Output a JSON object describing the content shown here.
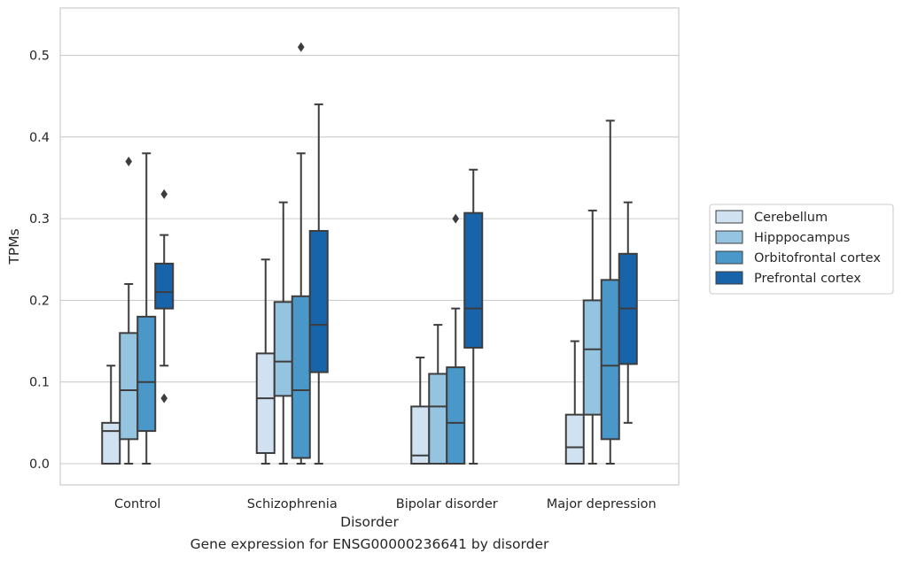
{
  "chart_data": {
    "type": "box",
    "xlabel": "Disorder",
    "ylabel": "TPMs",
    "caption": "Gene expression for ENSG00000236641 by disorder",
    "categories": [
      "Control",
      "Schizophrenia",
      "Bipolar disorder",
      "Major depression"
    ],
    "ylim": [
      -0.026,
      0.558
    ],
    "yticks": [
      0.0,
      0.1,
      0.2,
      0.3,
      0.4,
      0.5
    ],
    "ytick_labels": [
      "0.0",
      "0.1",
      "0.2",
      "0.3",
      "0.4",
      "0.5"
    ],
    "grid": true,
    "legend_position": "right",
    "series": [
      {
        "name": "Cerebellum",
        "color": "#d0e1f2",
        "boxes": [
          {
            "whislo": 0.0,
            "q1": 0.0,
            "med": 0.04,
            "q3": 0.05,
            "whishi": 0.12,
            "fliers": []
          },
          {
            "whislo": 0.0,
            "q1": 0.013,
            "med": 0.08,
            "q3": 0.135,
            "whishi": 0.25,
            "fliers": []
          },
          {
            "whislo": 0.0,
            "q1": 0.0,
            "med": 0.01,
            "q3": 0.07,
            "whishi": 0.13,
            "fliers": []
          },
          {
            "whislo": 0.0,
            "q1": 0.0,
            "med": 0.02,
            "q3": 0.06,
            "whishi": 0.15,
            "fliers": []
          }
        ]
      },
      {
        "name": "Hipppocampus",
        "color": "#94c4df",
        "boxes": [
          {
            "whislo": 0.0,
            "q1": 0.03,
            "med": 0.09,
            "q3": 0.16,
            "whishi": 0.22,
            "fliers": [
              0.37
            ]
          },
          {
            "whislo": 0.0,
            "q1": 0.083,
            "med": 0.125,
            "q3": 0.198,
            "whishi": 0.32,
            "fliers": []
          },
          {
            "whislo": 0.0,
            "q1": 0.0,
            "med": 0.07,
            "q3": 0.11,
            "whishi": 0.17,
            "fliers": []
          },
          {
            "whislo": 0.0,
            "q1": 0.06,
            "med": 0.14,
            "q3": 0.2,
            "whishi": 0.31,
            "fliers": []
          }
        ]
      },
      {
        "name": "Orbitofrontal cortex",
        "color": "#4a98c9",
        "boxes": [
          {
            "whislo": 0.0,
            "q1": 0.04,
            "med": 0.1,
            "q3": 0.18,
            "whishi": 0.38,
            "fliers": []
          },
          {
            "whislo": 0.0,
            "q1": 0.007,
            "med": 0.09,
            "q3": 0.205,
            "whishi": 0.38,
            "fliers": [
              0.51
            ]
          },
          {
            "whislo": 0.0,
            "q1": 0.0,
            "med": 0.05,
            "q3": 0.118,
            "whishi": 0.19,
            "fliers": [
              0.3
            ]
          },
          {
            "whislo": 0.0,
            "q1": 0.03,
            "med": 0.12,
            "q3": 0.225,
            "whishi": 0.42,
            "fliers": []
          }
        ]
      },
      {
        "name": "Prefrontal cortex",
        "color": "#1764ab",
        "boxes": [
          {
            "whislo": 0.12,
            "q1": 0.19,
            "med": 0.21,
            "q3": 0.245,
            "whishi": 0.28,
            "fliers": [
              0.33,
              0.08
            ]
          },
          {
            "whislo": 0.0,
            "q1": 0.112,
            "med": 0.17,
            "q3": 0.285,
            "whishi": 0.44,
            "fliers": []
          },
          {
            "whislo": 0.0,
            "q1": 0.142,
            "med": 0.19,
            "q3": 0.307,
            "whishi": 0.36,
            "fliers": []
          },
          {
            "whislo": 0.05,
            "q1": 0.122,
            "med": 0.19,
            "q3": 0.257,
            "whishi": 0.32,
            "fliers": []
          }
        ]
      }
    ]
  }
}
